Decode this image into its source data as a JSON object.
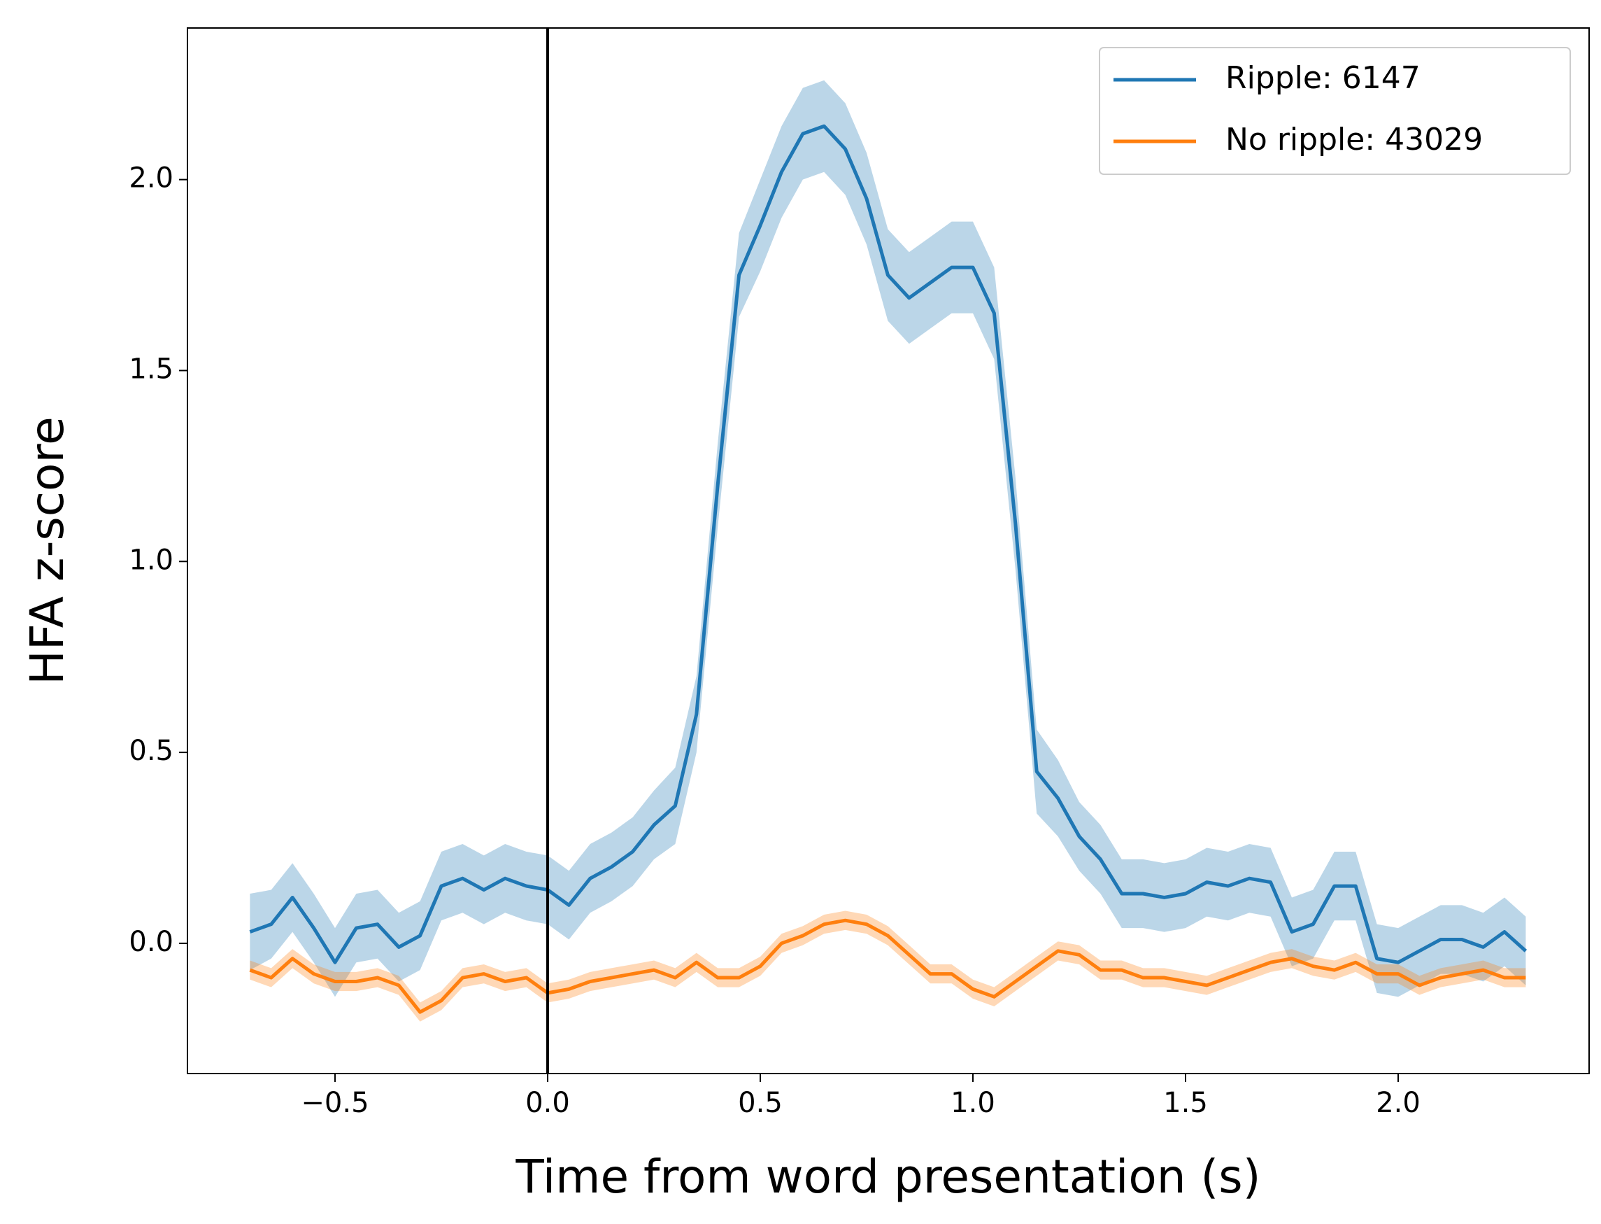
{
  "chart_data": {
    "type": "line",
    "x_label": "Time from word presentation (s)",
    "y_label": "HFA z-score",
    "x": [
      -0.7,
      -0.65,
      -0.6,
      -0.55,
      -0.5,
      -0.45,
      -0.4,
      -0.35,
      -0.3,
      -0.25,
      -0.2,
      -0.15,
      -0.1,
      -0.05,
      0,
      0.05,
      0.1,
      0.15,
      0.2,
      0.25,
      0.3,
      0.35,
      0.4,
      0.45,
      0.5,
      0.55,
      0.6,
      0.65,
      0.7,
      0.75,
      0.8,
      0.85,
      0.9,
      0.95,
      1,
      1.05,
      1.1,
      1.15,
      1.2,
      1.25,
      1.3,
      1.35,
      1.4,
      1.45,
      1.5,
      1.55,
      1.6,
      1.65,
      1.7,
      1.75,
      1.8,
      1.85,
      1.9,
      1.95,
      2,
      2.05,
      2.1,
      2.15,
      2.2,
      2.25,
      2.3
    ],
    "series": [
      {
        "name": "Ripple: 6147",
        "color": "#1f77b4",
        "values": [
          0.03,
          0.05,
          0.12,
          0.04,
          -0.05,
          0.04,
          0.05,
          -0.01,
          0.02,
          0.15,
          0.17,
          0.14,
          0.17,
          0.15,
          0.14,
          0.1,
          0.17,
          0.2,
          0.24,
          0.31,
          0.36,
          0.6,
          1.2,
          1.75,
          1.88,
          2.02,
          2.12,
          2.14,
          2.08,
          1.95,
          1.75,
          1.69,
          1.73,
          1.77,
          1.77,
          1.65,
          1.1,
          0.45,
          0.38,
          0.28,
          0.22,
          0.13,
          0.13,
          0.12,
          0.13,
          0.16,
          0.15,
          0.17,
          0.16,
          0.03,
          0.05,
          0.15,
          0.15,
          -0.04,
          -0.05,
          -0.02,
          0.01,
          0.01,
          -0.01,
          0.03,
          -0.02
        ],
        "error": [
          0.1,
          0.09,
          0.09,
          0.09,
          0.09,
          0.09,
          0.09,
          0.09,
          0.09,
          0.09,
          0.09,
          0.09,
          0.09,
          0.09,
          0.09,
          0.09,
          0.09,
          0.09,
          0.09,
          0.09,
          0.1,
          0.1,
          0.11,
          0.11,
          0.12,
          0.12,
          0.12,
          0.12,
          0.12,
          0.12,
          0.12,
          0.12,
          0.12,
          0.12,
          0.12,
          0.12,
          0.12,
          0.11,
          0.1,
          0.09,
          0.09,
          0.09,
          0.09,
          0.09,
          0.09,
          0.09,
          0.09,
          0.09,
          0.09,
          0.09,
          0.09,
          0.09,
          0.09,
          0.09,
          0.09,
          0.09,
          0.09,
          0.09,
          0.09,
          0.09,
          0.09
        ]
      },
      {
        "name": "No ripple: 43029",
        "color": "#ff7f0e",
        "values": [
          -0.07,
          -0.09,
          -0.04,
          -0.08,
          -0.1,
          -0.1,
          -0.09,
          -0.11,
          -0.18,
          -0.15,
          -0.09,
          -0.08,
          -0.1,
          -0.09,
          -0.13,
          -0.12,
          -0.1,
          -0.09,
          -0.08,
          -0.07,
          -0.09,
          -0.05,
          -0.09,
          -0.09,
          -0.06,
          0.0,
          0.02,
          0.05,
          0.06,
          0.05,
          0.02,
          -0.03,
          -0.08,
          -0.08,
          -0.12,
          -0.14,
          -0.1,
          -0.06,
          -0.02,
          -0.03,
          -0.07,
          -0.07,
          -0.09,
          -0.09,
          -0.1,
          -0.11,
          -0.09,
          -0.07,
          -0.05,
          -0.04,
          -0.06,
          -0.07,
          -0.05,
          -0.08,
          -0.08,
          -0.11,
          -0.09,
          -0.08,
          -0.07,
          -0.09,
          -0.09
        ],
        "error": [
          0.025,
          0.025,
          0.025,
          0.025,
          0.025,
          0.025,
          0.025,
          0.025,
          0.025,
          0.025,
          0.025,
          0.025,
          0.025,
          0.025,
          0.025,
          0.025,
          0.025,
          0.025,
          0.025,
          0.025,
          0.025,
          0.025,
          0.025,
          0.025,
          0.025,
          0.025,
          0.025,
          0.025,
          0.025,
          0.025,
          0.025,
          0.025,
          0.025,
          0.025,
          0.025,
          0.025,
          0.025,
          0.025,
          0.025,
          0.025,
          0.025,
          0.025,
          0.025,
          0.025,
          0.025,
          0.025,
          0.025,
          0.025,
          0.025,
          0.025,
          0.025,
          0.025,
          0.025,
          0.025,
          0.025,
          0.025,
          0.025,
          0.025,
          0.025,
          0.025,
          0.025
        ]
      }
    ],
    "vline": 0,
    "xlim": [
      -0.847,
      2.449
    ],
    "ylim": [
      -0.341,
      2.397
    ],
    "xticks": [
      {
        "value": -0.5,
        "label": "−0.5"
      },
      {
        "value": 0,
        "label": "0.0"
      },
      0.5,
      {
        "value": 1,
        "label": "1.0"
      },
      1.5,
      {
        "value": 2,
        "label": "2.0"
      }
    ],
    "yticks": [
      {
        "value": 0,
        "label": "0.0"
      },
      0.5,
      {
        "value": 1,
        "label": "1.0"
      },
      1.5,
      {
        "value": 2,
        "label": "2.0"
      }
    ],
    "legend": "upper right",
    "grid": false
  }
}
